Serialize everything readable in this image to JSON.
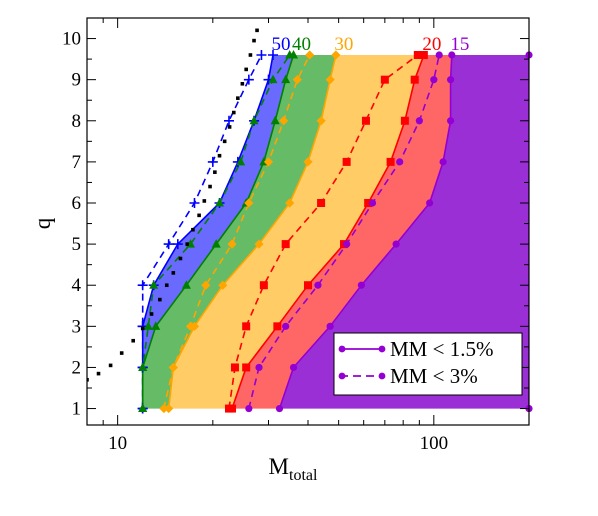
{
  "chart_data": {
    "type": "area",
    "xlabel": "M",
    "xlabel_sub": "total",
    "ylabel": "q",
    "xscale": "log",
    "xlim": [
      8,
      200
    ],
    "ylim": [
      0.6,
      10.5
    ],
    "xticks": [
      10,
      100
    ],
    "xtick_labels": [
      "10",
      "100"
    ],
    "yticks": [
      1,
      2,
      3,
      4,
      5,
      6,
      7,
      8,
      9,
      10
    ],
    "ytick_labels": [
      "1",
      "2",
      "3",
      "4",
      "5",
      "6",
      "7",
      "8",
      "9",
      "10"
    ],
    "grid": false,
    "legend_position": "bottom-right",
    "legend": [
      {
        "label": "MM < 1.5%",
        "style": "solid",
        "color": "#9400d3"
      },
      {
        "label": "MM < 3%",
        "style": "dashed",
        "color": "#9400d3"
      }
    ],
    "region_boundaries": [
      {
        "mass": "50",
        "color": "#0000ff",
        "fill": "#6a6aff",
        "marker": "plus",
        "solid": [
          [
            12,
            1
          ],
          [
            12,
            2
          ],
          [
            12,
            3
          ],
          [
            13,
            4
          ],
          [
            15.5,
            5
          ],
          [
            21,
            6
          ],
          [
            24,
            7
          ],
          [
            27,
            8
          ],
          [
            30,
            9
          ],
          [
            31,
            9.6
          ]
        ],
        "dashed": [
          [
            12,
            1
          ],
          [
            12,
            2
          ],
          [
            12,
            3
          ],
          [
            12,
            4
          ],
          [
            14.5,
            5
          ],
          [
            17.5,
            6
          ],
          [
            20,
            7
          ],
          [
            22.5,
            8
          ],
          [
            26,
            9
          ],
          [
            28.5,
            9.6
          ]
        ]
      },
      {
        "mass": "40",
        "color": "#008000",
        "fill": "#66bb66",
        "marker": "triangle",
        "solid": [
          [
            12,
            1
          ],
          [
            12,
            2
          ],
          [
            13.2,
            3
          ],
          [
            16.5,
            4
          ],
          [
            20.5,
            5
          ],
          [
            25.5,
            6
          ],
          [
            29,
            7
          ],
          [
            31.5,
            8
          ],
          [
            34,
            9
          ],
          [
            36,
            9.6
          ]
        ],
        "dashed": [
          [
            12,
            1
          ],
          [
            12,
            2
          ],
          [
            12.5,
            3
          ],
          [
            13,
            4
          ],
          [
            17,
            5
          ],
          [
            21,
            6
          ],
          [
            24.5,
            7
          ],
          [
            27,
            8
          ],
          [
            31,
            9
          ],
          [
            35,
            9.6
          ]
        ]
      },
      {
        "mass": "30",
        "color": "#ffa500",
        "fill": "#ffcc66",
        "marker": "diamond",
        "solid": [
          [
            14.5,
            1
          ],
          [
            15,
            2
          ],
          [
            17.5,
            3
          ],
          [
            21.5,
            4
          ],
          [
            28,
            5
          ],
          [
            35,
            6
          ],
          [
            40,
            7
          ],
          [
            44,
            8
          ],
          [
            47,
            9
          ],
          [
            49,
            9.6
          ]
        ],
        "dashed": [
          [
            14,
            1
          ],
          [
            15,
            2
          ],
          [
            17,
            3
          ],
          [
            19,
            4
          ],
          [
            23,
            5
          ],
          [
            26,
            6
          ],
          [
            30,
            7
          ],
          [
            33.5,
            8
          ],
          [
            37,
            9
          ],
          [
            40.5,
            9.6
          ]
        ]
      },
      {
        "mass": "20",
        "color": "#ff0000",
        "fill": "#ff6666",
        "marker": "square",
        "solid": [
          [
            23,
            1
          ],
          [
            25.5,
            2
          ],
          [
            32,
            3
          ],
          [
            40,
            4
          ],
          [
            52,
            5
          ],
          [
            62,
            6
          ],
          [
            73,
            7
          ],
          [
            81,
            8
          ],
          [
            87,
            9
          ],
          [
            93,
            9.6
          ]
        ],
        "dashed": [
          [
            22.5,
            1
          ],
          [
            23.5,
            2
          ],
          [
            25.5,
            3
          ],
          [
            29,
            4
          ],
          [
            34,
            5
          ],
          [
            44,
            6
          ],
          [
            53,
            7
          ],
          [
            61,
            8
          ],
          [
            70,
            9
          ],
          [
            89,
            9.6
          ]
        ]
      },
      {
        "mass": "15",
        "color": "#9400d3",
        "fill": "#9b2fd6",
        "marker": "circle",
        "solid": [
          [
            32.5,
            1
          ],
          [
            36,
            2
          ],
          [
            47,
            3
          ],
          [
            59,
            4
          ],
          [
            76,
            5
          ],
          [
            97,
            6
          ],
          [
            107,
            7
          ],
          [
            113,
            8
          ],
          [
            113,
            9
          ],
          [
            114,
            9.6
          ]
        ],
        "dashed": [
          [
            26,
            1
          ],
          [
            28,
            2
          ],
          [
            34,
            3
          ],
          [
            43,
            4
          ],
          [
            53,
            5
          ],
          [
            64,
            6
          ],
          [
            78,
            7
          ],
          [
            90,
            8
          ],
          [
            100,
            9
          ],
          [
            104,
            9.6
          ]
        ]
      }
    ],
    "right_boundary": [
      [
        200,
        1
      ],
      [
        200,
        9.6
      ]
    ],
    "black_dotted": [
      [
        8,
        1.7
      ],
      [
        8.7,
        1.85
      ],
      [
        9.5,
        2.05
      ],
      [
        10.3,
        2.35
      ],
      [
        11.2,
        2.65
      ],
      [
        12,
        2.95
      ],
      [
        12.8,
        3.3
      ],
      [
        13.6,
        3.65
      ],
      [
        14.3,
        4
      ],
      [
        15,
        4.3
      ],
      [
        15.8,
        4.65
      ],
      [
        16.6,
        5
      ],
      [
        17.3,
        5.35
      ],
      [
        18.1,
        5.7
      ],
      [
        18.8,
        6.05
      ],
      [
        19.6,
        6.4
      ],
      [
        20.3,
        6.75
      ],
      [
        21,
        7.15
      ],
      [
        21.8,
        7.5
      ],
      [
        22.6,
        7.85
      ],
      [
        23.3,
        8.2
      ],
      [
        24,
        8.55
      ],
      [
        24.8,
        8.9
      ],
      [
        25.5,
        9.25
      ],
      [
        26.3,
        9.6
      ],
      [
        27,
        9.95
      ],
      [
        27.6,
        10.2
      ]
    ]
  }
}
